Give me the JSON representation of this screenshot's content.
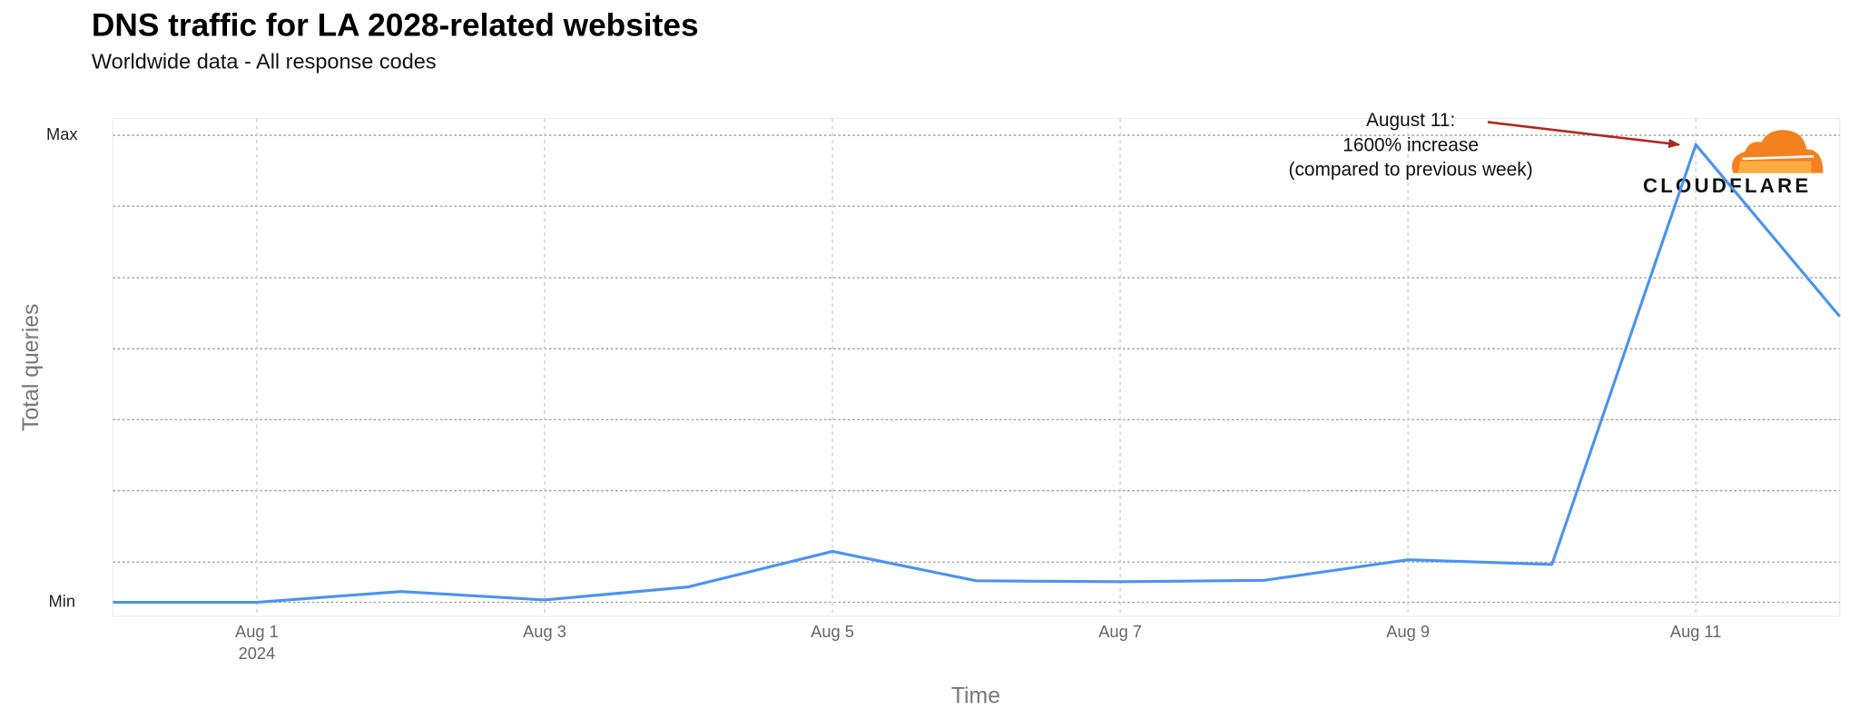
{
  "chart_data": {
    "type": "line",
    "title": "DNS traffic for LA 2028-related websites",
    "subtitle": "Worldwide data - All response codes",
    "x_label": "Time",
    "y_label": "Total queries",
    "x": [
      "2024-07-31",
      "2024-08-01",
      "2024-08-02",
      "2024-08-03",
      "2024-08-04",
      "2024-08-05",
      "2024-08-06",
      "2024-08-07",
      "2024-08-08",
      "2024-08-09",
      "2024-08-10",
      "2024-08-11",
      "2024-08-12"
    ],
    "series": [
      {
        "name": "Total queries",
        "color": "#4b93ef",
        "values": [
          0,
          0,
          2.3,
          0.5,
          3.3,
          10.9,
          4.6,
          4.4,
          4.7,
          9.1,
          8.1,
          98.0,
          61.2
        ]
      }
    ],
    "xlim": [
      "2024-07-31",
      "2024-08-12"
    ],
    "xticks": [
      {
        "value": "2024-08-01",
        "label": "Aug 1\n2024"
      },
      {
        "value": "2024-08-03",
        "label": "Aug 3"
      },
      {
        "value": "2024-08-05",
        "label": "Aug 5"
      },
      {
        "value": "2024-08-07",
        "label": "Aug 7"
      },
      {
        "value": "2024-08-09",
        "label": "Aug 9"
      },
      {
        "value": "2024-08-11",
        "label": "Aug 11"
      }
    ],
    "ylim": [
      -3,
      103.6
    ],
    "yticks": [
      {
        "value": 0,
        "label": "Min"
      },
      {
        "value": 8.6,
        "label": null
      },
      {
        "value": 23.9,
        "label": null
      },
      {
        "value": 39.1,
        "label": null
      },
      {
        "value": 54.3,
        "label": null
      },
      {
        "value": 69.5,
        "label": null
      },
      {
        "value": 84.8,
        "label": null
      },
      {
        "value": 100,
        "label": "Max"
      }
    ],
    "grid": true,
    "annotation": {
      "text": "August 11:\n1600% increase\n(compared to previous week)",
      "x": "2024-08-11",
      "y": 98.0,
      "color": "#b0281c"
    },
    "logo": "CLOUDFLARE"
  }
}
